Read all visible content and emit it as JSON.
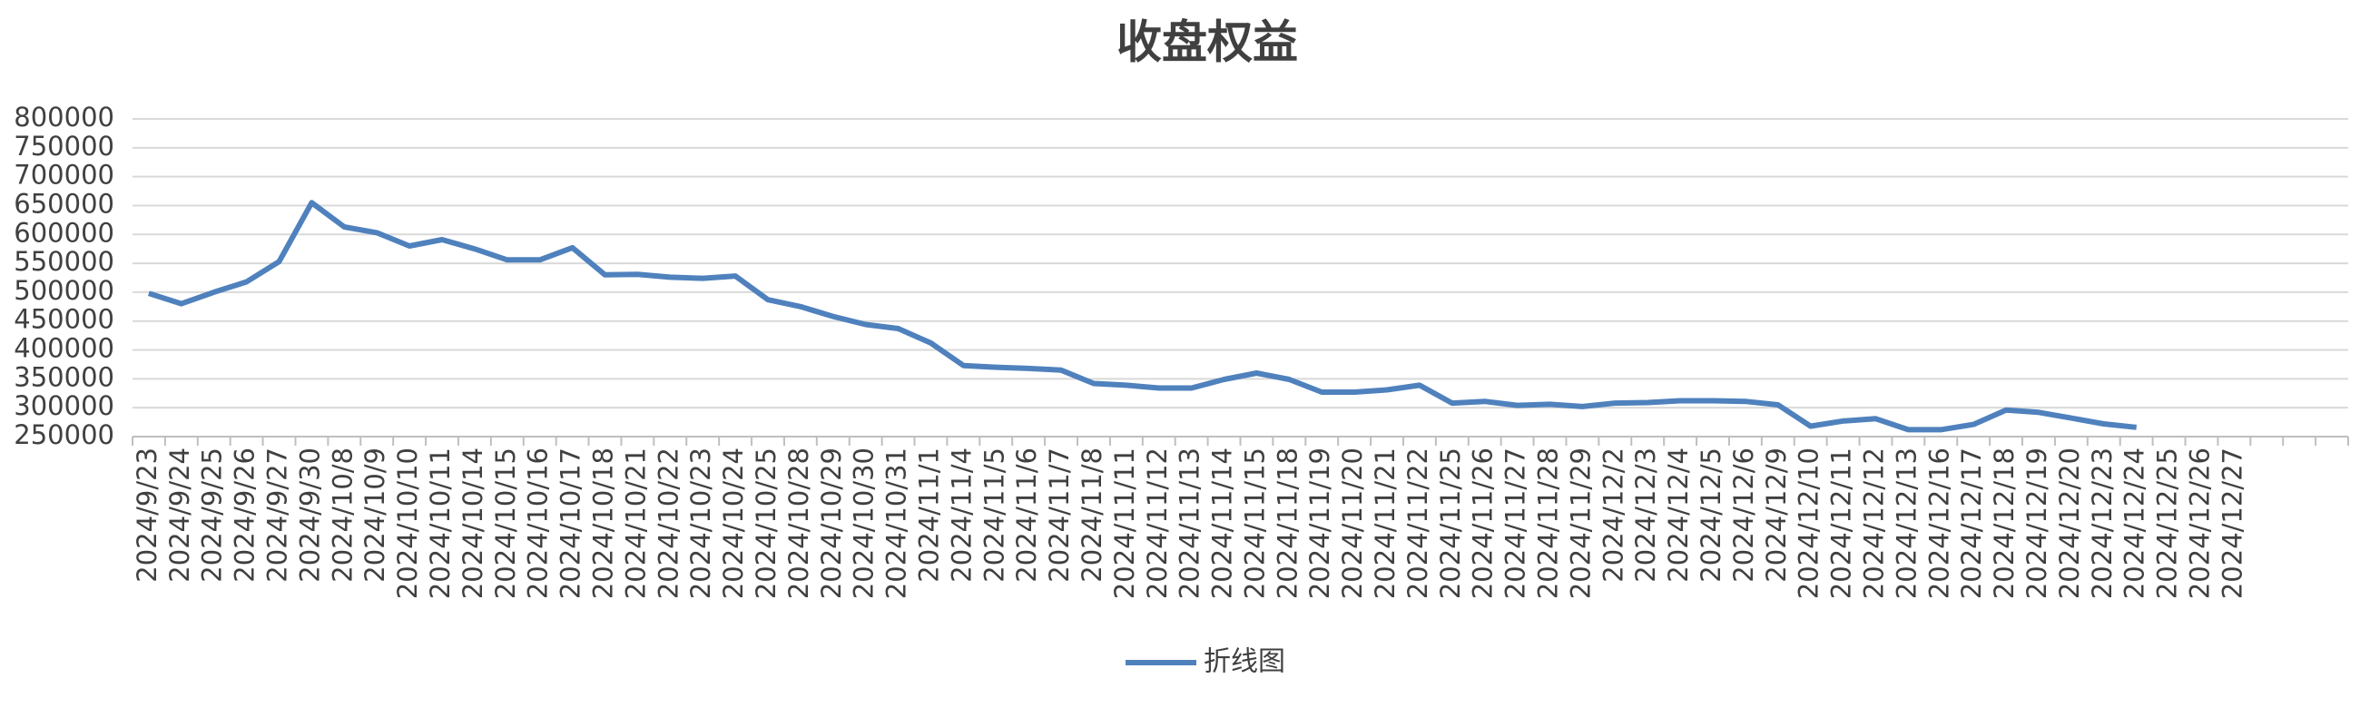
{
  "chart_data": {
    "type": "line",
    "title": "收盘权益",
    "categories": [
      "2024/9/23",
      "2024/9/24",
      "2024/9/25",
      "2024/9/26",
      "2024/9/27",
      "2024/9/30",
      "2024/10/8",
      "2024/10/9",
      "2024/10/10",
      "2024/10/11",
      "2024/10/14",
      "2024/10/15",
      "2024/10/16",
      "2024/10/17",
      "2024/10/18",
      "2024/10/21",
      "2024/10/22",
      "2024/10/23",
      "2024/10/24",
      "2024/10/25",
      "2024/10/28",
      "2024/10/29",
      "2024/10/30",
      "2024/10/31",
      "2024/11/1",
      "2024/11/4",
      "2024/11/5",
      "2024/11/6",
      "2024/11/7",
      "2024/11/8",
      "2024/11/11",
      "2024/11/12",
      "2024/11/13",
      "2024/11/14",
      "2024/11/15",
      "2024/11/18",
      "2024/11/19",
      "2024/11/20",
      "2024/11/21",
      "2024/11/22",
      "2024/11/25",
      "2024/11/26",
      "2024/11/27",
      "2024/11/28",
      "2024/11/29",
      "2024/12/2",
      "2024/12/3",
      "2024/12/4",
      "2024/12/5",
      "2024/12/6",
      "2024/12/9",
      "2024/12/10",
      "2024/12/11",
      "2024/12/12",
      "2024/12/13",
      "2024/12/16",
      "2024/12/17",
      "2024/12/18",
      "2024/12/19",
      "2024/12/20",
      "2024/12/23",
      "2024/12/24",
      "2024/12/25",
      "2024/12/26",
      "2024/12/27",
      null,
      null,
      null
    ],
    "series": [
      {
        "name": "折线图",
        "color": "#4f81bd",
        "values": [
          498000,
          480000,
          500000,
          518000,
          553000,
          655000,
          613000,
          603000,
          580000,
          591000,
          575000,
          556000,
          556000,
          577000,
          530000,
          531000,
          526000,
          524000,
          528000,
          487000,
          475000,
          458000,
          444000,
          437000,
          412000,
          373000,
          370000,
          368000,
          365000,
          342000,
          339000,
          334000,
          334000,
          349000,
          360000,
          349000,
          327000,
          327000,
          331000,
          339000,
          308000,
          311000,
          304000,
          306000,
          302000,
          308000,
          309000,
          312000,
          312000,
          311000,
          305000,
          268000,
          277000,
          281000,
          262000,
          262000,
          271000,
          296000,
          292000,
          282000,
          272000,
          266000,
          null,
          null,
          null,
          null,
          null,
          null
        ]
      }
    ],
    "ylim": [
      250000,
      800000
    ],
    "yticks": [
      250000,
      300000,
      350000,
      400000,
      450000,
      500000,
      550000,
      600000,
      650000,
      700000,
      750000,
      800000
    ],
    "grid": true,
    "legend": "bottom"
  }
}
